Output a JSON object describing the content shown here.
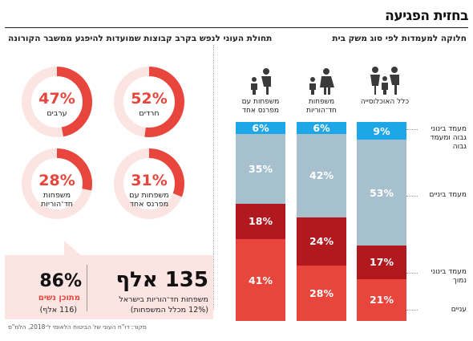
{
  "title": "בחזית הפגיעה",
  "right_panel": {
    "subtitle": "חלוקה למעמדות לפי סוג משק בית",
    "columns": [
      "כלל האוכלוסייה",
      "משפחות חד־הוריות",
      "משפחות עם מפרנס אחד"
    ],
    "rows": [
      {
        "label": "מעמד בינוני גבוה ומעמד גבוה",
        "color": "#1ea7e8"
      },
      {
        "label": "מעמד ביניים",
        "color": "#a7c0cd"
      },
      {
        "label": "מעמד בינוני נמוך",
        "color": "#b1191e"
      },
      {
        "label": "עניים",
        "color": "#e8453c"
      }
    ]
  },
  "chart_data": {
    "type": "bar",
    "stacked": true,
    "categories": [
      "כלל האוכלוסייה",
      "משפחות חד־הוריות",
      "משפחות עם מפרנס אחד"
    ],
    "series": [
      {
        "name": "מעמד בינוני גבוה ומעמד גבוה",
        "values": [
          9,
          6,
          6
        ],
        "labels": [
          "9%",
          "6%",
          "6%"
        ]
      },
      {
        "name": "מעמד ביניים",
        "values": [
          53,
          42,
          35
        ],
        "labels": [
          "53%",
          "42%",
          "35%"
        ]
      },
      {
        "name": "מעמד בינוני נמוך",
        "values": [
          17,
          24,
          18
        ],
        "labels": [
          "17%",
          "24%",
          "18%"
        ]
      },
      {
        "name": "עניים",
        "values": [
          21,
          28,
          41
        ],
        "labels": [
          "21%",
          "28%",
          "41%"
        ]
      }
    ]
  },
  "left_panel": {
    "subtitle": "תחולת העוני לנפש בקרב קבוצות שמועדות להיפגע ממשבר הקורונה",
    "donuts": [
      {
        "value": 52,
        "pct": "52%",
        "label": "חרדים",
        "color": "#e8453c",
        "track": "#fbe4e2"
      },
      {
        "value": 47,
        "pct": "47%",
        "label": "ערבים",
        "color": "#e8453c",
        "track": "#fbe4e2"
      },
      {
        "value": 31,
        "pct": "31%",
        "label": "משפחות עם מפרנס אחד",
        "color": "#e8453c",
        "track": "#fbe4e2"
      },
      {
        "value": 28,
        "pct": "28%",
        "label": "משפחות חד־הוריות",
        "color": "#e8453c",
        "track": "#fbe4e2"
      }
    ]
  },
  "callout": {
    "main_number": "135 אלף",
    "main_text": "משפחות חד־הוריות בישראל",
    "main_sub": "(12% מכלל המשפחות)",
    "side_number": "86%",
    "side_text": "מתוכן נשים",
    "side_sub": "(116 אלף)"
  },
  "source": "מקור: דו\"ח העוני של הביטוח הלאומי ל־2018, הלמ\"ס"
}
